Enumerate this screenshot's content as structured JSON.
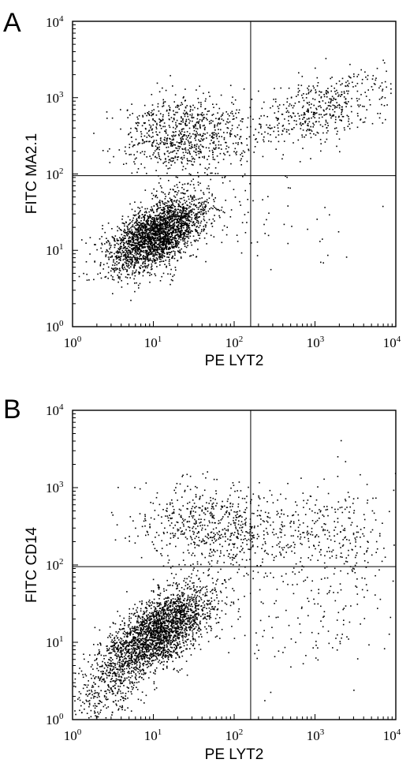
{
  "chart_data": [
    {
      "type": "scatter",
      "panel_label": "A",
      "xlabel": "PE LYT2",
      "ylabel": "FITC MA2.1",
      "x_scale": "log",
      "y_scale": "log",
      "xlim": [
        1,
        10000
      ],
      "ylim": [
        1,
        10000
      ],
      "x_ticks": [
        1,
        10,
        100,
        1000,
        10000
      ],
      "y_ticks": [
        1,
        10,
        100,
        1000,
        10000
      ],
      "tick_labels": [
        {
          "base": "10",
          "exp": "0"
        },
        {
          "base": "10",
          "exp": "1"
        },
        {
          "base": "10",
          "exp": "2"
        },
        {
          "base": "10",
          "exp": "3"
        },
        {
          "base": "10",
          "exp": "4"
        }
      ],
      "quadrant_gates": {
        "x": 160,
        "y": 95
      },
      "grid": false,
      "legend": false,
      "point_color": "#000000",
      "populations": [
        {
          "center": [
            11,
            16
          ],
          "spread_log10": [
            0.3,
            0.25
          ],
          "correlation": 0.55,
          "count": 2600
        },
        {
          "center": [
            25,
            320
          ],
          "spread_log10": [
            0.38,
            0.25
          ],
          "correlation": 0.0,
          "count": 800
        },
        {
          "center": [
            1200,
            700
          ],
          "spread_log10": [
            0.5,
            0.25
          ],
          "correlation": 0.6,
          "count": 500
        },
        {
          "center": [
            200,
            25
          ],
          "spread_log10": [
            0.55,
            0.3
          ],
          "correlation": 0.0,
          "count": 60
        }
      ]
    },
    {
      "type": "scatter",
      "panel_label": "B",
      "xlabel": "PE LYT2",
      "ylabel": "FITC CD14",
      "x_scale": "log",
      "y_scale": "log",
      "xlim": [
        1,
        10000
      ],
      "ylim": [
        1,
        10000
      ],
      "x_ticks": [
        1,
        10,
        100,
        1000,
        10000
      ],
      "y_ticks": [
        1,
        10,
        100,
        1000,
        10000
      ],
      "tick_labels": [
        {
          "base": "10",
          "exp": "0"
        },
        {
          "base": "10",
          "exp": "1"
        },
        {
          "base": "10",
          "exp": "2"
        },
        {
          "base": "10",
          "exp": "3"
        },
        {
          "base": "10",
          "exp": "4"
        }
      ],
      "quadrant_gates": {
        "x": 160,
        "y": 95
      },
      "grid": false,
      "legend": false,
      "point_color": "#000000",
      "populations": [
        {
          "center": [
            12,
            14
          ],
          "spread_log10": [
            0.32,
            0.28
          ],
          "correlation": 0.6,
          "count": 2400
        },
        {
          "center": [
            3,
            3
          ],
          "spread_log10": [
            0.25,
            0.25
          ],
          "correlation": 0.5,
          "count": 400
        },
        {
          "center": [
            60,
            300
          ],
          "spread_log10": [
            0.45,
            0.28
          ],
          "correlation": 0.0,
          "count": 650
        },
        {
          "center": [
            1500,
            250
          ],
          "spread_log10": [
            0.45,
            0.35
          ],
          "correlation": 0.0,
          "count": 320
        },
        {
          "center": [
            600,
            20
          ],
          "spread_log10": [
            0.6,
            0.35
          ],
          "correlation": 0.0,
          "count": 140
        }
      ]
    }
  ]
}
